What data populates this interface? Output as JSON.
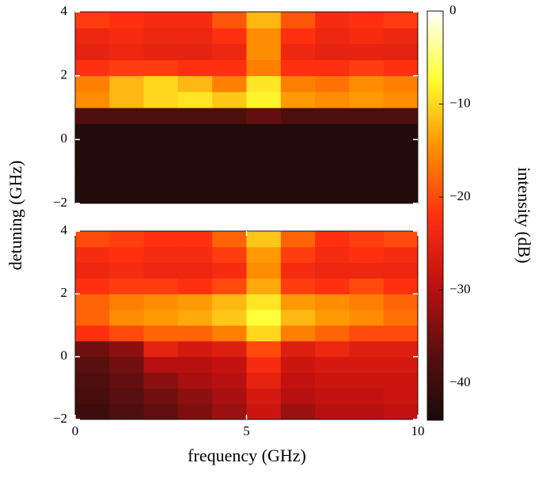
{
  "chart_data": [
    {
      "type": "heatmap",
      "y_label": "detuning (GHz)",
      "xbins": [
        0,
        1,
        2,
        3,
        4,
        5,
        6,
        7,
        8,
        9,
        10
      ],
      "ybins": [
        -2,
        -1.5,
        -1,
        -0.5,
        0,
        0.5,
        1,
        1.5,
        2,
        2.5,
        3,
        3.5,
        4
      ],
      "values": [
        [
          -43,
          -43,
          -43,
          -43,
          -43,
          -43,
          -43,
          -43,
          -43,
          -43
        ],
        [
          -43,
          -43,
          -43,
          -43,
          -43,
          -43,
          -43,
          -43,
          -43,
          -43
        ],
        [
          -43,
          -43,
          -43,
          -43,
          -43,
          -43,
          -43,
          -43,
          -43,
          -43
        ],
        [
          -43,
          -43,
          -43,
          -43,
          -43,
          -43,
          -43,
          -43,
          -43,
          -43
        ],
        [
          -43,
          -43,
          -43,
          -43,
          -43,
          -43,
          -43,
          -43,
          -43,
          -43
        ],
        [
          -38,
          -38,
          -38,
          -38,
          -38,
          -36,
          -38,
          -38,
          -38,
          -38
        ],
        [
          -15,
          -12,
          -10,
          -9,
          -11,
          -8,
          -14,
          -15,
          -14,
          -15
        ],
        [
          -16,
          -12,
          -10,
          -12,
          -16,
          -9,
          -16,
          -17,
          -15,
          -16
        ],
        [
          -22,
          -21,
          -21,
          -22,
          -22,
          -16,
          -22,
          -22,
          -21,
          -22
        ],
        [
          -25,
          -24,
          -25,
          -25,
          -24,
          -15,
          -24,
          -25,
          -25,
          -25
        ],
        [
          -24,
          -23,
          -24,
          -24,
          -22,
          -15,
          -22,
          -24,
          -23,
          -24
        ],
        [
          -21,
          -22,
          -23,
          -23,
          -19,
          -12,
          -19,
          -23,
          -22,
          -21
        ]
      ],
      "xlim": [
        0,
        10
      ],
      "ylim": [
        -2,
        4
      ],
      "yticks": [
        {
          "value": -2,
          "label": "−2"
        },
        0,
        2,
        4
      ],
      "colorbar": {
        "label": "intensity (dB)",
        "zlim": [
          -44,
          0
        ],
        "zticks": [
          0,
          {
            "value": -10,
            "label": "−10"
          },
          {
            "value": -20,
            "label": "−20"
          },
          {
            "value": -30,
            "label": "−30"
          },
          {
            "value": -40,
            "label": "−40"
          }
        ],
        "colormap": [
          "#1a0a0a",
          "#5a0f0f",
          "#c01010",
          "#ff3010",
          "#ff9000",
          "#ffff30",
          "#ffffff"
        ]
      }
    },
    {
      "type": "heatmap",
      "x_label": "frequency (GHz)",
      "xbins": [
        0,
        1,
        2,
        3,
        4,
        5,
        6,
        7,
        8,
        9,
        10
      ],
      "ybins": [
        -2,
        -1.5,
        -1,
        -0.5,
        0,
        0.5,
        1,
        1.5,
        2,
        2.5,
        3,
        3.5,
        4
      ],
      "values": [
        [
          -40,
          -38,
          -36,
          -34,
          -32,
          -28,
          -32,
          -30,
          -30,
          -29
        ],
        [
          -39,
          -37,
          -35,
          -33,
          -31,
          -27,
          -30,
          -29,
          -29,
          -28
        ],
        [
          -38,
          -36,
          -33,
          -31,
          -30,
          -25,
          -29,
          -28,
          -28,
          -28
        ],
        [
          -37,
          -35,
          -30,
          -30,
          -29,
          -23,
          -28,
          -27,
          -27,
          -27
        ],
        [
          -35,
          -33,
          -25,
          -27,
          -26,
          -20,
          -26,
          -24,
          -26,
          -26
        ],
        [
          -22,
          -20,
          -18,
          -18,
          -16,
          -10,
          -16,
          -18,
          -20,
          -20
        ],
        [
          -18,
          -15,
          -14,
          -13,
          -11,
          -7,
          -12,
          -14,
          -15,
          -17
        ],
        [
          -18,
          -16,
          -15,
          -14,
          -12,
          -9,
          -14,
          -15,
          -16,
          -18
        ],
        [
          -22,
          -21,
          -21,
          -22,
          -20,
          -13,
          -21,
          -22,
          -20,
          -22
        ],
        [
          -24,
          -23,
          -24,
          -24,
          -23,
          -15,
          -23,
          -24,
          -24,
          -24
        ],
        [
          -23,
          -22,
          -23,
          -23,
          -21,
          -14,
          -21,
          -23,
          -22,
          -23
        ],
        [
          -20,
          -21,
          -22,
          -22,
          -18,
          -11,
          -18,
          -22,
          -21,
          -20
        ]
      ],
      "xlim": [
        0,
        10
      ],
      "ylim": [
        -2,
        4
      ],
      "xticks": [
        0,
        5,
        10
      ],
      "yticks": [
        {
          "value": -2,
          "label": "−2"
        },
        0,
        2,
        4
      ]
    }
  ]
}
